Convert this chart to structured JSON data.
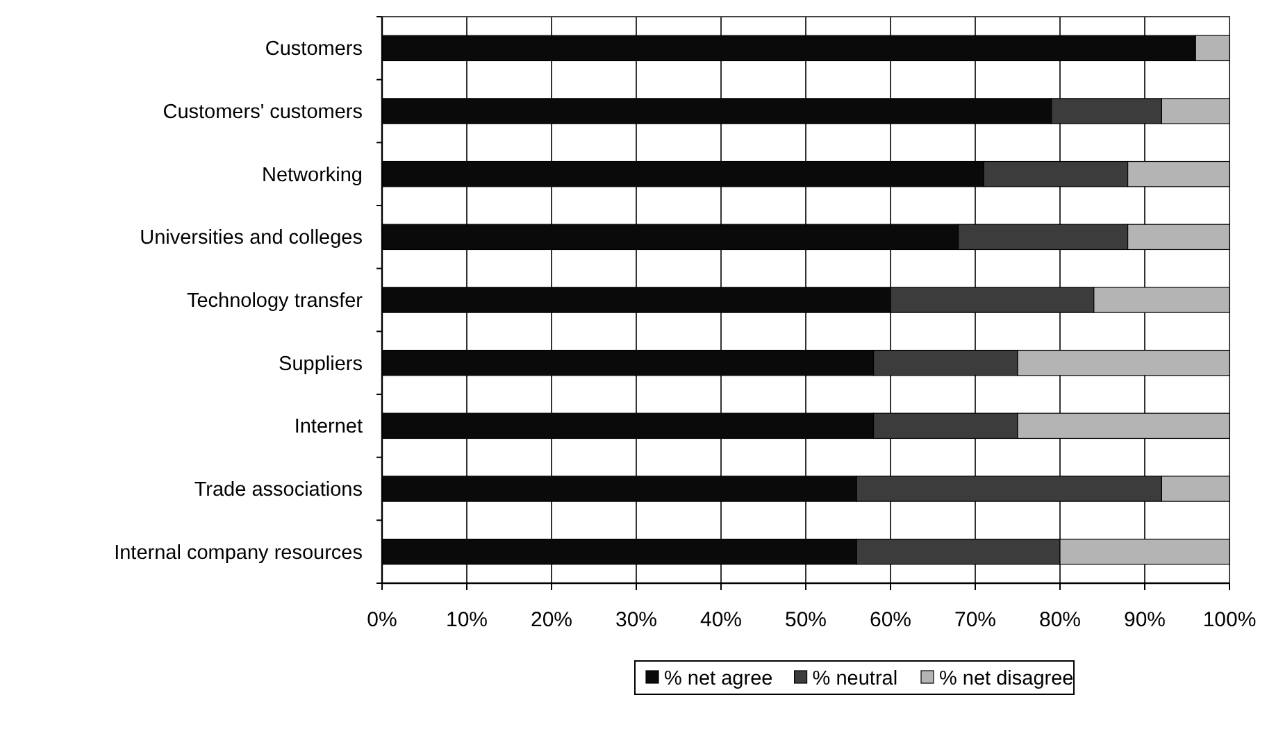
{
  "chart_data": {
    "type": "bar",
    "orientation": "horizontal",
    "stacked": true,
    "categories": [
      "Customers",
      "Customers' customers",
      "Networking",
      "Universities and colleges",
      "Technology transfer",
      "Suppliers",
      "Internet",
      "Trade associations",
      "Internal company resources"
    ],
    "series": [
      {
        "name": "% net agree",
        "color": "#0a0a0a",
        "values": [
          96,
          79,
          71,
          68,
          60,
          58,
          58,
          56,
          56
        ]
      },
      {
        "name": "% neutral",
        "color": "#3c3c3c",
        "values": [
          0,
          13,
          17,
          20,
          24,
          17,
          17,
          36,
          24
        ]
      },
      {
        "name": "% net disagree",
        "color": "#b4b4b4",
        "values": [
          4,
          8,
          12,
          12,
          16,
          25,
          25,
          8,
          20
        ]
      }
    ],
    "xlim": [
      0,
      100
    ],
    "xticks": [
      {
        "value": 0,
        "label": "0%"
      },
      {
        "value": 10,
        "label": "10%"
      },
      {
        "value": 20,
        "label": "20%"
      },
      {
        "value": 30,
        "label": "30%"
      },
      {
        "value": 40,
        "label": "40%"
      },
      {
        "value": 50,
        "label": "50%"
      },
      {
        "value": 60,
        "label": "60%"
      },
      {
        "value": 70,
        "label": "70%"
      },
      {
        "value": 80,
        "label": "80%"
      },
      {
        "value": 90,
        "label": "90%"
      },
      {
        "value": 100,
        "label": "100%"
      }
    ],
    "grid": "x",
    "legend": "bottom"
  }
}
